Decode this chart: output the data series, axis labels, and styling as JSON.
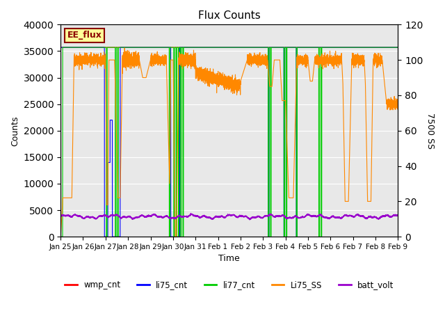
{
  "title": "Flux Counts",
  "xlabel": "Time",
  "ylabel_left": "Counts",
  "ylabel_right": "7500 SS",
  "left_ylim": [
    0,
    40000
  ],
  "right_ylim": [
    0,
    120
  ],
  "background_color": "#e8e8e8",
  "annotation_text": "EE_flux",
  "annotation_color": "#8b0000",
  "annotation_bg": "#ffff99",
  "series_colors": {
    "wmp_cnt": "#ff0000",
    "li75_cnt": "#0000ff",
    "li77_cnt": "#00cc00",
    "Li75_SS": "#ff8800",
    "batt_volt": "#9900cc"
  },
  "left_yticks": [
    0,
    5000,
    10000,
    15000,
    20000,
    25000,
    30000,
    35000,
    40000
  ],
  "right_yticks": [
    0,
    20,
    40,
    60,
    80,
    100,
    120
  ],
  "xtick_labels": [
    "Jan 25",
    "Jan 26",
    "Jan 27",
    "Jan 28",
    "Jan 29",
    "Jan 30",
    "Jan 31",
    "Feb 1",
    "Feb 2",
    "Feb 3",
    "Feb 4",
    "Feb 5",
    "Feb 6",
    "Feb 7",
    "Feb 8",
    "Feb 9"
  ],
  "figsize": [
    6.4,
    4.8
  ],
  "dpi": 100
}
